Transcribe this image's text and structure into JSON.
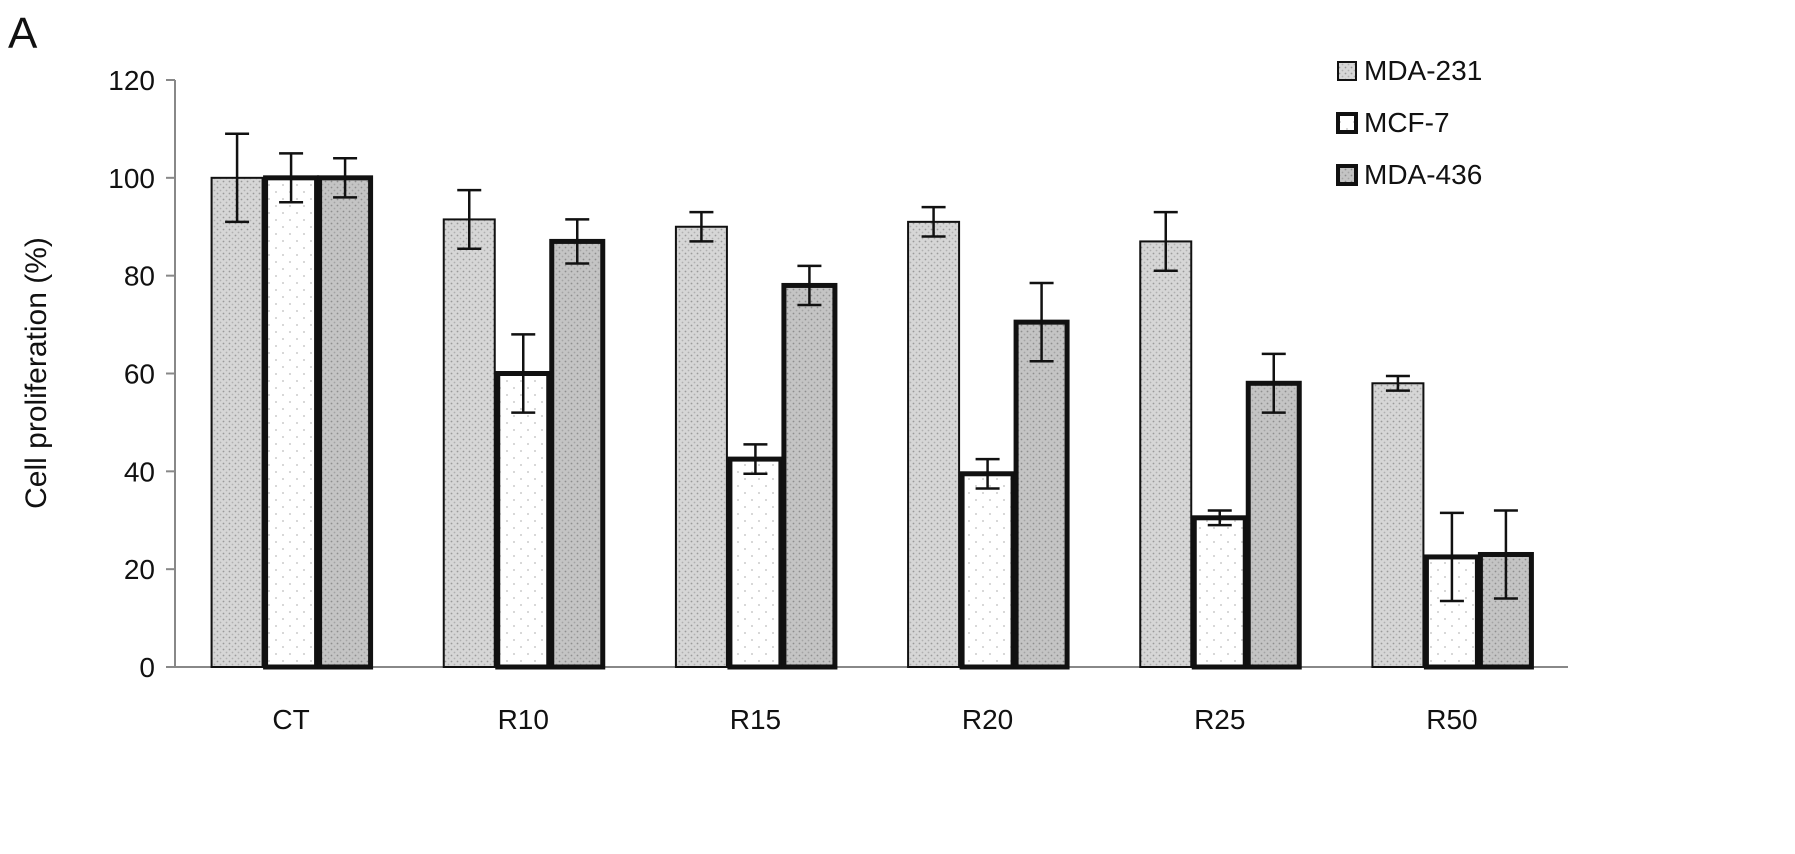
{
  "panel_label": "A",
  "chart_data": {
    "type": "bar",
    "title": "",
    "xlabel": "",
    "ylabel": "Cell proliferation (%)",
    "ylim": [
      0,
      120
    ],
    "yticks": [
      0,
      20,
      40,
      60,
      80,
      100,
      120
    ],
    "grid": false,
    "legend_position": "top-right",
    "categories": [
      "CT",
      "R10",
      "R15",
      "R20",
      "R25",
      "R50"
    ],
    "series": [
      {
        "name": "MDA-231",
        "values": [
          100,
          91.5,
          90,
          91,
          87,
          58
        ],
        "errors": [
          9,
          6,
          3,
          3,
          6,
          1.5
        ],
        "fill": "#d9d9d9",
        "pattern": "dense-dots",
        "stroke_style": "thin"
      },
      {
        "name": "MCF-7",
        "values": [
          100,
          60,
          42.5,
          39.5,
          30.5,
          22.5
        ],
        "errors": [
          5,
          8,
          3,
          3,
          1.5,
          9
        ],
        "fill": "#ffffff",
        "pattern": "sparse-dots",
        "stroke_style": "thick"
      },
      {
        "name": "MDA-436",
        "values": [
          100,
          87,
          78,
          70.5,
          58,
          23
        ],
        "errors": [
          4,
          4.5,
          4,
          8,
          6,
          9
        ],
        "fill": "#c2c2c2",
        "pattern": "dense-dots",
        "stroke_style": "thick"
      }
    ]
  }
}
